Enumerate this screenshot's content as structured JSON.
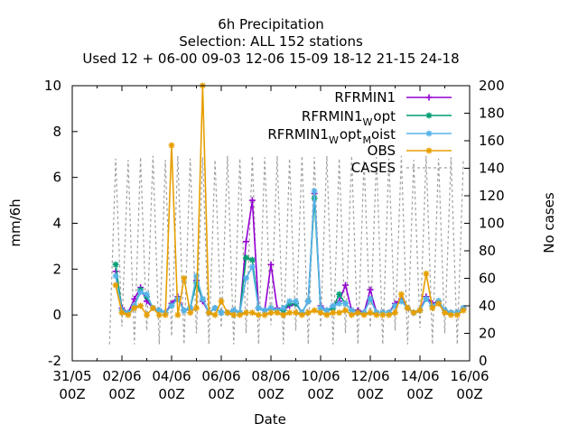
{
  "chart_data": {
    "type": "line",
    "title_lines": [
      "6h Precipitation",
      "Selection: ALL     152 stations",
      "Used  12 + 06-00 09-03 12-06 15-09 18-12 21-15 24-18"
    ],
    "xlabel": "Date",
    "ylabel": "mm/6h",
    "y2label": "No cases",
    "xlim": [
      0,
      16
    ],
    "ylim": [
      -2,
      10
    ],
    "y2lim": [
      0,
      200
    ],
    "x_ticks": [
      {
        "v": 0,
        "l1": "31/05",
        "l2": "00Z"
      },
      {
        "v": 2,
        "l1": "02/06",
        "l2": "00Z"
      },
      {
        "v": 4,
        "l1": "04/06",
        "l2": "00Z"
      },
      {
        "v": 6,
        "l1": "06/06",
        "l2": "00Z"
      },
      {
        "v": 8,
        "l1": "08/06",
        "l2": "00Z"
      },
      {
        "v": 10,
        "l1": "10/06",
        "l2": "00Z"
      },
      {
        "v": 12,
        "l1": "12/06",
        "l2": "00Z"
      },
      {
        "v": 14,
        "l1": "14/06",
        "l2": "00Z"
      },
      {
        "v": 16,
        "l1": "16/06",
        "l2": "00Z"
      }
    ],
    "y_ticks": [
      -2,
      0,
      2,
      4,
      6,
      8,
      10
    ],
    "y2_ticks": [
      0,
      20,
      40,
      60,
      80,
      100,
      120,
      140,
      160,
      180,
      200
    ],
    "legend": {
      "placement": "top-right"
    },
    "series": [
      {
        "name": "RFRMIN1",
        "color": "#9400d3",
        "marker": "plus",
        "x": [
          1.75,
          2.0,
          2.25,
          2.5,
          2.75,
          3.0,
          3.25,
          3.5,
          3.75,
          4.0,
          4.25,
          4.5,
          4.75,
          5.0,
          5.25,
          5.5,
          5.75,
          6.0,
          6.25,
          6.5,
          6.75,
          7.0,
          7.25,
          7.5,
          7.75,
          8.0,
          8.25,
          8.5,
          8.75,
          9.0,
          9.25,
          9.5,
          9.75,
          10.0,
          10.25,
          10.5,
          10.75,
          11.0,
          11.25,
          11.5,
          11.75,
          12.0,
          12.25,
          12.5,
          12.75,
          13.0,
          13.25,
          13.5,
          13.75,
          14.0,
          14.25,
          14.5,
          14.75,
          15.0,
          15.25,
          15.5,
          15.75
        ],
        "y": [
          1.9,
          0.3,
          0.1,
          0.7,
          1.2,
          0.6,
          0.3,
          0.2,
          0.1,
          0.5,
          0.8,
          0.2,
          0.3,
          1.5,
          0.6,
          0.1,
          0.3,
          0.1,
          0.1,
          0.2,
          0.1,
          3.2,
          5.0,
          0.3,
          0.2,
          2.2,
          0.3,
          0.2,
          0.4,
          0.5,
          0.1,
          0.6,
          5.3,
          0.4,
          0.2,
          0.4,
          0.6,
          1.3,
          0.2,
          0.2,
          0.1,
          1.1,
          0.1,
          0.1,
          0.1,
          0.5,
          0.7,
          0.3,
          0.1,
          0.2,
          0.8,
          0.5,
          0.6,
          0.2,
          0.1,
          0.1,
          0.3
        ]
      },
      {
        "name": "RFRMIN1_W opt",
        "color": "#009e73",
        "marker": "star",
        "x": [
          1.75,
          2.0,
          2.25,
          2.5,
          2.75,
          3.0,
          3.25,
          3.5,
          3.75,
          4.0,
          4.25,
          4.5,
          4.75,
          5.0,
          5.25,
          5.5,
          5.75,
          6.0,
          6.25,
          6.5,
          6.75,
          7.0,
          7.25,
          7.5,
          7.75,
          8.0,
          8.25,
          8.5,
          8.75,
          9.0,
          9.25,
          9.5,
          9.75,
          10.0,
          10.25,
          10.5,
          10.75,
          11.0,
          11.25,
          11.5,
          11.75,
          12.0,
          12.25,
          12.5,
          12.75,
          13.0,
          13.25,
          13.5,
          13.75,
          14.0,
          14.25,
          14.5,
          14.75,
          15.0,
          15.25,
          15.5,
          15.75
        ],
        "y": [
          2.2,
          0.2,
          0.1,
          0.4,
          1.1,
          0.8,
          0.3,
          0.2,
          0.1,
          0.4,
          0.7,
          0.2,
          0.3,
          1.4,
          0.7,
          0.1,
          0.3,
          0.1,
          0.1,
          0.2,
          0.1,
          2.5,
          2.4,
          0.3,
          0.2,
          0.3,
          0.2,
          0.2,
          0.5,
          0.5,
          0.1,
          0.6,
          5.1,
          0.3,
          0.2,
          0.3,
          0.9,
          0.5,
          0.2,
          0.1,
          0.1,
          0.7,
          0.1,
          0.1,
          0.1,
          0.4,
          0.6,
          0.3,
          0.1,
          0.2,
          0.7,
          0.4,
          0.6,
          0.2,
          0.1,
          0.1,
          0.3
        ]
      },
      {
        "name": "RFRMIN1_W opt_M oist",
        "color": "#56b4e9",
        "marker": "star",
        "x": [
          1.75,
          2.0,
          2.25,
          2.5,
          2.75,
          3.0,
          3.25,
          3.5,
          3.75,
          4.0,
          4.25,
          4.5,
          4.75,
          5.0,
          5.25,
          5.5,
          5.75,
          6.0,
          6.25,
          6.5,
          6.75,
          7.0,
          7.25,
          7.5,
          7.75,
          8.0,
          8.25,
          8.5,
          8.75,
          9.0,
          9.25,
          9.5,
          9.75,
          10.0,
          10.25,
          10.5,
          10.75,
          11.0,
          11.25,
          11.5,
          11.75,
          12.0,
          12.25,
          12.5,
          12.75,
          13.0,
          13.25,
          13.5,
          13.75,
          14.0,
          14.25,
          14.5,
          14.75,
          15.0,
          15.25,
          15.5,
          15.75
        ],
        "y": [
          1.7,
          0.2,
          0.1,
          0.4,
          1.0,
          0.9,
          0.3,
          0.2,
          0.1,
          0.4,
          0.7,
          0.2,
          0.3,
          1.7,
          0.7,
          0.1,
          0.3,
          0.1,
          0.1,
          0.2,
          0.1,
          1.6,
          2.1,
          0.3,
          0.2,
          0.3,
          0.2,
          0.3,
          0.6,
          0.6,
          0.1,
          0.6,
          5.4,
          0.3,
          0.2,
          0.4,
          0.5,
          0.5,
          0.2,
          0.1,
          0.1,
          0.7,
          0.1,
          0.1,
          0.1,
          0.4,
          0.6,
          0.3,
          0.1,
          0.2,
          0.7,
          0.4,
          0.6,
          0.2,
          0.1,
          0.1,
          0.3
        ]
      },
      {
        "name": "OBS",
        "color": "#e69f00",
        "marker": "star",
        "x": [
          1.75,
          2.0,
          2.25,
          2.5,
          2.75,
          3.0,
          3.25,
          3.5,
          3.75,
          4.0,
          4.25,
          4.5,
          4.75,
          5.0,
          5.25,
          5.5,
          5.75,
          6.0,
          6.25,
          6.5,
          6.75,
          7.0,
          7.25,
          7.5,
          7.75,
          8.0,
          8.25,
          8.5,
          8.75,
          9.0,
          9.25,
          9.5,
          9.75,
          10.0,
          10.25,
          10.5,
          10.75,
          11.0,
          11.25,
          11.5,
          11.75,
          12.0,
          12.25,
          12.5,
          12.75,
          13.0,
          13.25,
          13.5,
          13.75,
          14.0,
          14.25,
          14.5,
          14.75,
          15.0,
          15.25,
          15.5,
          15.75
        ],
        "y": [
          1.3,
          0.1,
          0.0,
          0.3,
          0.4,
          0.0,
          0.3,
          0.0,
          0.0,
          7.4,
          0.0,
          1.6,
          0.1,
          0.3,
          10.0,
          0.1,
          0.0,
          0.6,
          0.1,
          0.0,
          0.0,
          0.1,
          0.1,
          0.0,
          0.0,
          0.1,
          0.1,
          0.0,
          0.1,
          0.1,
          0.0,
          0.1,
          0.2,
          0.1,
          0.0,
          0.1,
          0.1,
          0.2,
          0.0,
          0.1,
          0.0,
          0.1,
          0.0,
          0.0,
          0.0,
          0.1,
          0.9,
          0.3,
          0.1,
          0.2,
          1.8,
          0.3,
          0.5,
          0.1,
          0.0,
          0.0,
          0.2
        ]
      },
      {
        "name": "CASES",
        "color": "#a0a0a0",
        "axis": "y2",
        "x": [
          1.5,
          1.75,
          2.0,
          2.25,
          2.5,
          2.75,
          3.0,
          3.25,
          3.5,
          3.75,
          4.0,
          4.25,
          4.5,
          4.75,
          5.0,
          5.25,
          5.5,
          5.75,
          6.0,
          6.25,
          6.5,
          6.75,
          7.0,
          7.25,
          7.5,
          7.75,
          8.0,
          8.25,
          8.5,
          8.75,
          9.0,
          9.25,
          9.5,
          9.75,
          10.0,
          10.25,
          10.5,
          10.75,
          11.0,
          11.25,
          11.5,
          11.75,
          12.0,
          12.25,
          12.5,
          12.75,
          13.0,
          13.25,
          13.5,
          13.75,
          14.0,
          14.25,
          14.5,
          14.75,
          15.0,
          15.25,
          15.5,
          15.75
        ],
        "y": [
          12,
          147,
          25,
          146,
          12,
          148,
          22,
          149,
          12,
          146,
          18,
          149,
          12,
          147,
          20,
          148,
          12,
          146,
          24,
          149,
          12,
          147,
          20,
          149,
          12,
          148,
          26,
          149,
          12,
          147,
          22,
          149,
          12,
          148,
          24,
          149,
          12,
          147,
          20,
          149,
          12,
          146,
          24,
          148,
          12,
          147,
          22,
          149,
          12,
          146,
          24,
          149,
          12,
          147,
          20,
          148,
          12,
          147
        ]
      }
    ]
  },
  "legend_labels": {
    "s0": {
      "base": "RFRMIN1"
    },
    "s1": {
      "base": "RFRMIN1",
      "sub1": "W",
      "rest1": "opt"
    },
    "s2": {
      "base": "RFRMIN1",
      "sub1": "W",
      "rest1": "opt",
      "sub2": "M",
      "rest2": "oist"
    },
    "s3": {
      "base": "OBS"
    },
    "s4": {
      "base": "CASES"
    }
  }
}
